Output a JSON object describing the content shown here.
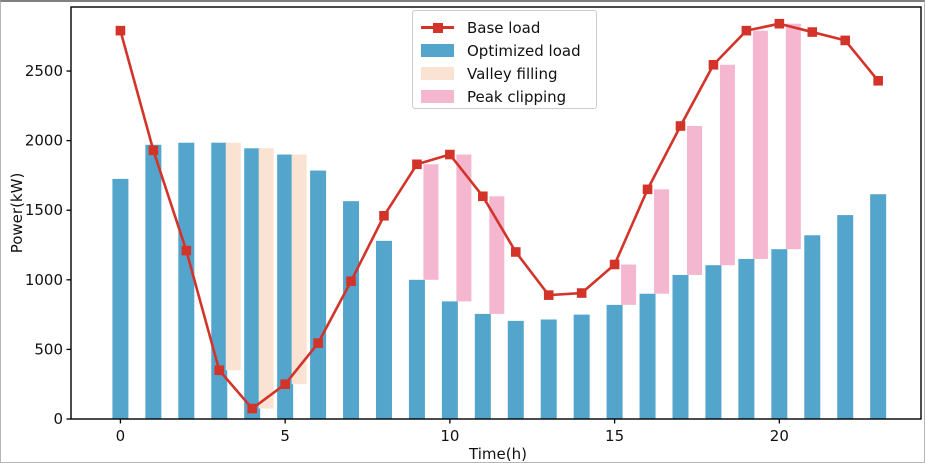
{
  "chart_data": {
    "type": "bar+line",
    "title": "",
    "xlabel": "Time(h)",
    "ylabel": "Power(kW)",
    "x": [
      0,
      1,
      2,
      3,
      4,
      5,
      6,
      7,
      8,
      9,
      10,
      11,
      12,
      13,
      14,
      15,
      16,
      17,
      18,
      19,
      20,
      21,
      22,
      23
    ],
    "x_ticks": [
      0,
      5,
      10,
      15,
      20
    ],
    "y_ticks": [
      0,
      500,
      1000,
      1500,
      2000,
      2500
    ],
    "xlim": [
      -1.5,
      24.3
    ],
    "ylim": [
      0,
      2960
    ],
    "grid": false,
    "legend_position": "upper center",
    "series": [
      {
        "name": "Base load",
        "type": "line",
        "marker": "square",
        "color": "#d2342a",
        "values": [
          2790,
          1930,
          1210,
          350,
          75,
          250,
          545,
          990,
          1460,
          1830,
          1900,
          1600,
          1200,
          890,
          905,
          1110,
          1650,
          2105,
          2545,
          2790,
          2840,
          2780,
          2720,
          2430
        ]
      },
      {
        "name": "Optimized load",
        "type": "bar",
        "color": "#54a5cc",
        "values": [
          1725,
          1970,
          1985,
          1985,
          1945,
          1900,
          1785,
          1565,
          1280,
          1000,
          845,
          755,
          705,
          715,
          750,
          820,
          900,
          1035,
          1105,
          1150,
          1220,
          1320,
          1465,
          1615
        ]
      },
      {
        "name": "Valley filling",
        "type": "range-bar",
        "color": "#fbe3d4",
        "hours": [
          3,
          4,
          5
        ],
        "from_series": "Base load",
        "to_series": "Optimized load"
      },
      {
        "name": "Peak clipping",
        "type": "range-bar",
        "color": "#f5b6d0",
        "hours": [
          9,
          10,
          11,
          15,
          16,
          17,
          18,
          19,
          20
        ],
        "from_series": "Optimized load",
        "to_series": "Base load"
      }
    ]
  },
  "legend": {
    "items": [
      {
        "label": "Base load",
        "color": "#d2342a",
        "glyph": "line-square-marker"
      },
      {
        "label": "Optimized load",
        "color": "#54a5cc",
        "glyph": "swatch"
      },
      {
        "label": "Valley filling",
        "color": "#fbe3d4",
        "glyph": "swatch"
      },
      {
        "label": "Peak clipping",
        "color": "#f5b6d0",
        "glyph": "swatch"
      }
    ]
  }
}
